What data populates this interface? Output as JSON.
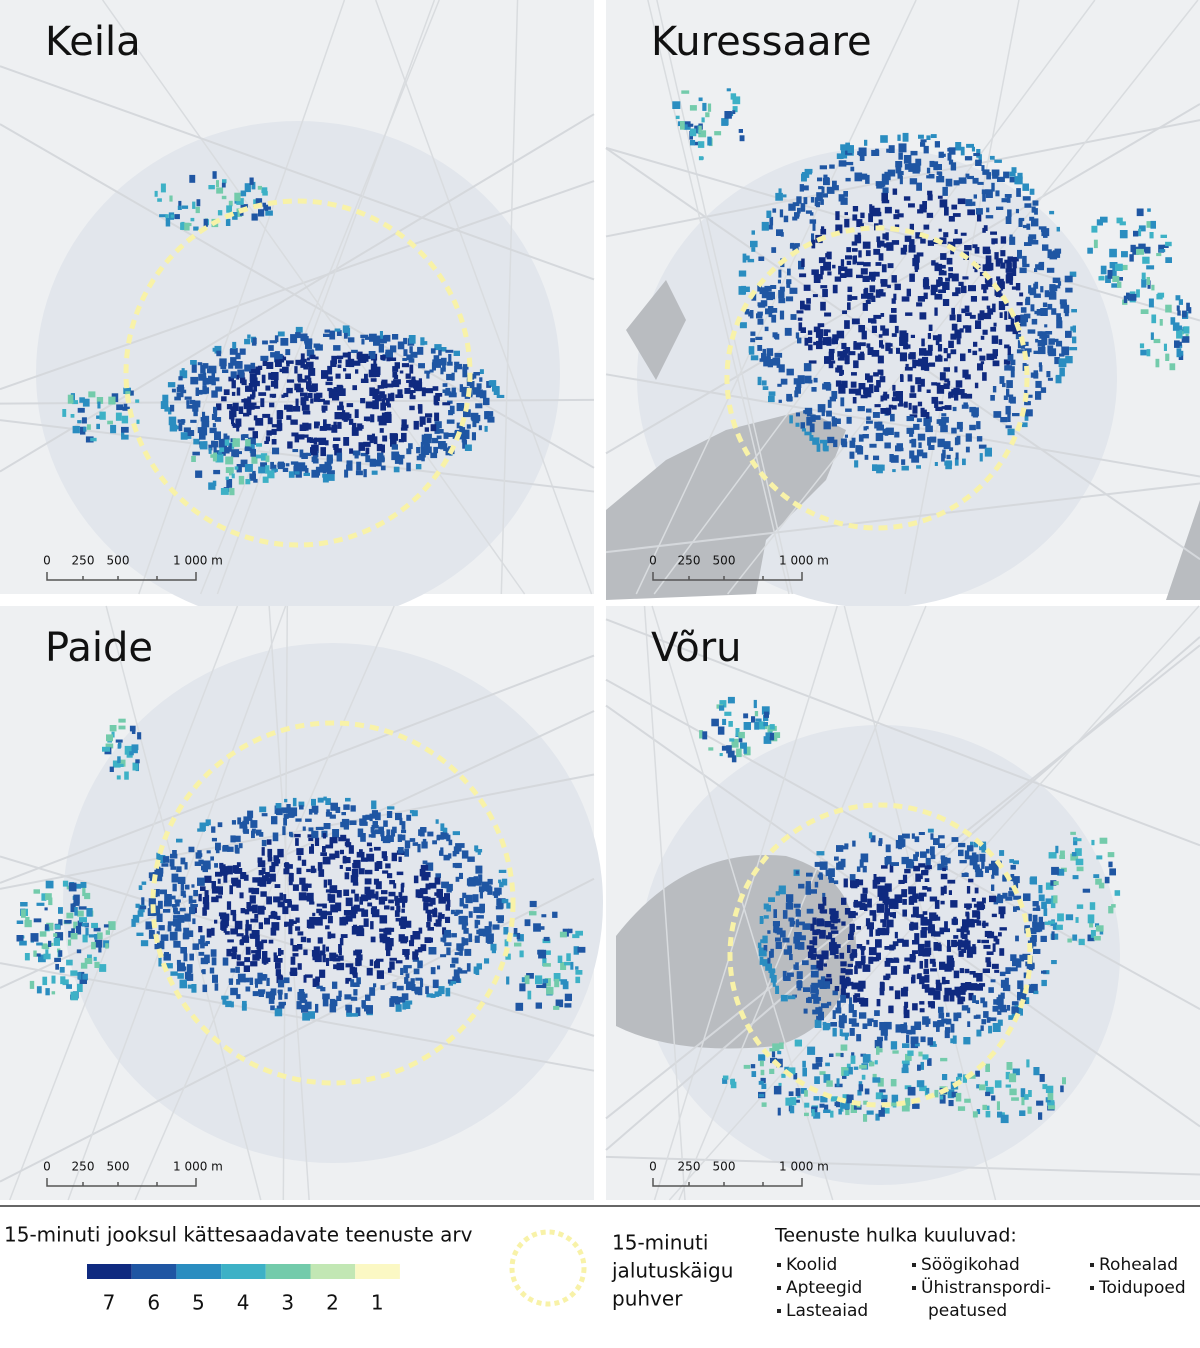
{
  "panels": [
    {
      "name": "Keila",
      "scale": [
        "0",
        "250",
        "500",
        "1 000 m"
      ]
    },
    {
      "name": "Kuressaare",
      "scale": [
        "0",
        "250",
        "500",
        "1 000 m"
      ]
    },
    {
      "name": "Paide",
      "scale": [
        "0",
        "250",
        "500",
        "1 000 m"
      ]
    },
    {
      "name": "Võru",
      "scale": [
        "0",
        "250",
        "500",
        "1 000 m"
      ]
    }
  ],
  "legend": {
    "title": "15-minuti jooksul kättesaadavate teenuste arv",
    "classes": [
      {
        "label": "7",
        "color": "#0f2a80"
      },
      {
        "label": "6",
        "color": "#1f56a3"
      },
      {
        "label": "5",
        "color": "#2a8dc0"
      },
      {
        "label": "4",
        "color": "#3db1c6"
      },
      {
        "label": "3",
        "color": "#73cbab"
      },
      {
        "label": "2",
        "color": "#c2e7b4"
      },
      {
        "label": "1",
        "color": "#fbf8c4"
      }
    ],
    "buffer": [
      "15-minuti",
      "jalutuskäigu",
      "puhver"
    ],
    "services_title": "Teenuste hulka kuuluvad:",
    "services": [
      [
        "Koolid"
      ],
      [
        "Apteegid"
      ],
      [
        "Lasteaiad"
      ],
      [
        "Söögikohad"
      ],
      [
        "Ühistranspordi-",
        "peatused"
      ],
      [
        "Rohealad"
      ],
      [
        "Toidupoed"
      ]
    ]
  }
}
